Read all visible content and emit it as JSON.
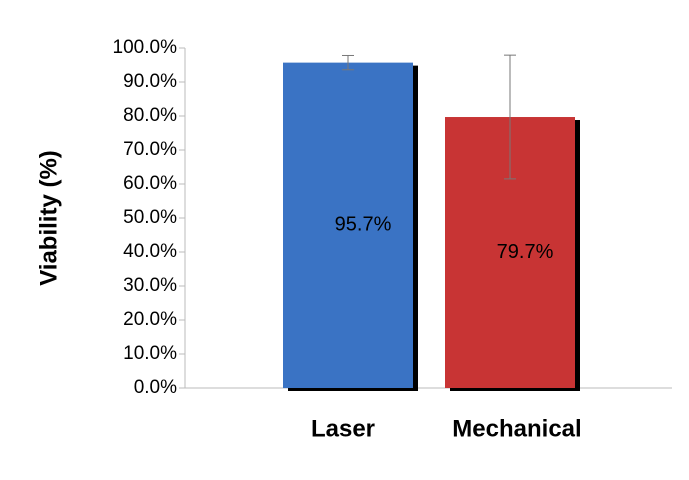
{
  "chart_data": {
    "type": "bar",
    "y_label": "Viability (%)",
    "categories": [
      "Laser",
      "Mechanical"
    ],
    "values": [
      95.7,
      79.7
    ],
    "value_labels": [
      "95.7%",
      "79.7%"
    ],
    "errors": [
      2.1,
      18.2
    ],
    "colors": [
      "#3a73c4",
      "#c83434"
    ],
    "ylim": [
      0,
      100
    ],
    "yticks": [
      {
        "value": 0,
        "label": "0.0%"
      },
      {
        "value": 10,
        "label": "10.0%"
      },
      {
        "value": 20,
        "label": "20.0%"
      },
      {
        "value": 30,
        "label": "30.0%"
      },
      {
        "value": 40,
        "label": "40.0%"
      },
      {
        "value": 50,
        "label": "50.0%"
      },
      {
        "value": 60,
        "label": "60.0%"
      },
      {
        "value": 70,
        "label": "70.0%"
      },
      {
        "value": 80,
        "label": "80.0%"
      },
      {
        "value": 90,
        "label": "90.0%"
      },
      {
        "value": 100,
        "label": "100.0%"
      }
    ],
    "grid": false
  }
}
